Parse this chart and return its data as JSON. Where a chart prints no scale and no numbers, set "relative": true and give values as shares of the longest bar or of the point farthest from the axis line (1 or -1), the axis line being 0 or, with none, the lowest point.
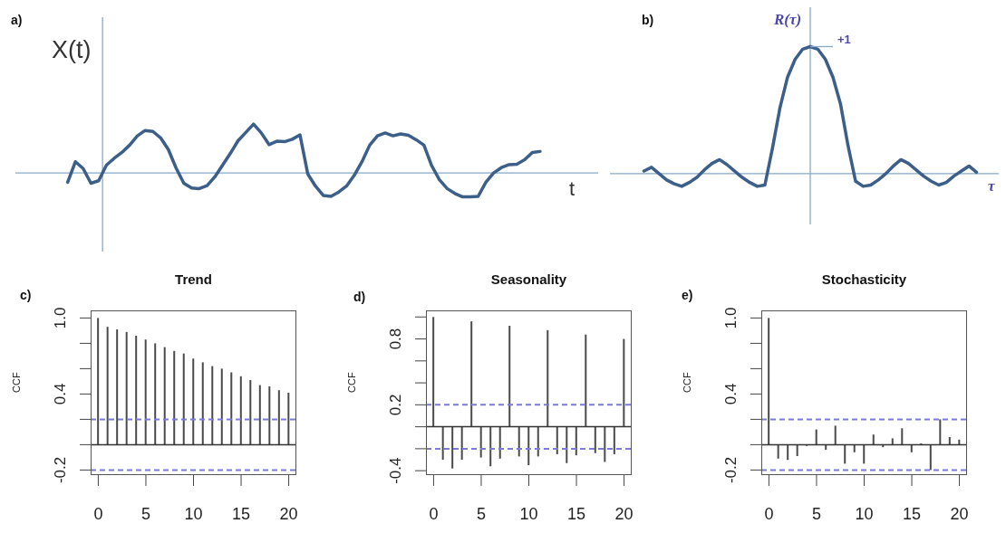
{
  "chart_data": [
    {
      "type": "line",
      "xlabel": "t",
      "ylabel": "X(t)",
      "annotations": [
        "a)"
      ],
      "ref_lines": [
        {
          "axis": "y",
          "value": 0,
          "color": "#86a9c9"
        }
      ],
      "relative": true,
      "color": "#3c5f8a",
      "marker": "none",
      "line_style": "solid",
      "grid": false,
      "legend": false,
      "tick_labels": false,
      "categories": [
        null,
        null,
        null,
        null,
        null,
        null,
        null,
        null,
        null,
        null,
        null,
        null,
        null,
        null,
        null,
        null,
        null,
        null,
        null,
        null,
        null,
        null,
        null,
        null,
        null,
        null,
        null,
        null,
        null,
        null,
        null,
        null,
        null,
        null,
        null,
        null,
        null,
        null,
        null,
        null,
        null,
        null,
        null,
        null,
        null,
        null,
        null,
        null,
        null,
        null,
        null,
        null,
        null,
        null,
        null,
        null,
        null,
        null,
        null,
        null,
        null,
        null
      ],
      "values": [
        -0.19,
        0.23,
        0.09,
        -0.21,
        -0.16,
        0.16,
        0.3,
        0.42,
        0.57,
        0.76,
        0.87,
        0.85,
        0.72,
        0.48,
        0.1,
        -0.21,
        -0.31,
        -0.32,
        -0.26,
        -0.08,
        0.16,
        0.4,
        0.66,
        0.83,
        1.0,
        0.82,
        0.58,
        0.65,
        0.64,
        0.69,
        0.78,
        -0.02,
        -0.27,
        -0.46,
        -0.48,
        -0.39,
        -0.27,
        -0.05,
        0.23,
        0.57,
        0.76,
        0.82,
        0.76,
        0.8,
        0.77,
        0.68,
        0.57,
        0.15,
        -0.14,
        -0.32,
        -0.42,
        -0.49,
        -0.49,
        -0.48,
        -0.19,
        0.0,
        0.11,
        0.17,
        0.18,
        0.27,
        0.42,
        0.44
      ]
    },
    {
      "type": "line",
      "xlabel": "τ",
      "ylabel": "R(τ)",
      "annotations": [
        "b)",
        "+1"
      ],
      "ref_lines": [
        {
          "axis": "y",
          "value": 0,
          "color": "#86a9c9"
        }
      ],
      "relative": true,
      "color": "#3c5f8a",
      "marker": "none",
      "line_style": "solid",
      "grid": false,
      "legend": false,
      "tick_labels": false,
      "categories": [
        null,
        null,
        null,
        null,
        null,
        null,
        null,
        null,
        null,
        null,
        null,
        null,
        null,
        null,
        null,
        null,
        null,
        null,
        null,
        null,
        null,
        null,
        null,
        null,
        null,
        null,
        null,
        null,
        null,
        null,
        null,
        null,
        null,
        null,
        null,
        null,
        null,
        null,
        null,
        null,
        null,
        null,
        null,
        null,
        null
      ],
      "values": [
        0.02,
        0.05,
        0.0,
        -0.05,
        -0.08,
        -0.1,
        -0.07,
        -0.03,
        0.03,
        0.08,
        0.11,
        0.07,
        0.02,
        -0.03,
        -0.07,
        -0.1,
        -0.09,
        0.2,
        0.52,
        0.76,
        0.9,
        0.98,
        1.0,
        0.98,
        0.9,
        0.76,
        0.55,
        0.22,
        -0.06,
        -0.1,
        -0.09,
        -0.05,
        0.0,
        0.06,
        0.11,
        0.08,
        0.03,
        -0.02,
        -0.06,
        -0.09,
        -0.07,
        -0.02,
        0.02,
        0.06,
        0.01
      ]
    },
    {
      "type": "bar",
      "title": "Trend",
      "ylabel": "CCF",
      "annotations": [
        "c)"
      ],
      "color": "#4a4a4a",
      "grid": false,
      "legend": false,
      "x": [
        0,
        1,
        2,
        3,
        4,
        5,
        6,
        7,
        8,
        9,
        10,
        11,
        12,
        13,
        14,
        15,
        16,
        17,
        18,
        19,
        20
      ],
      "values": [
        1.0,
        0.93,
        0.91,
        0.89,
        0.86,
        0.83,
        0.8,
        0.77,
        0.74,
        0.72,
        0.68,
        0.65,
        0.62,
        0.6,
        0.57,
        0.54,
        0.51,
        0.47,
        0.46,
        0.43,
        0.41
      ],
      "xlim": [
        -0.8,
        20.8
      ],
      "xticks": [
        0,
        5,
        10,
        15,
        20
      ],
      "ylim": [
        -0.24,
        1.06
      ],
      "yticks": [
        {
          "value": -0.2,
          "label": "-0.2"
        },
        {
          "value": 0,
          "label": null
        },
        {
          "value": 0.2,
          "label": null
        },
        {
          "value": 0.4,
          "label": "0.4"
        },
        {
          "value": 0.6,
          "label": null
        },
        {
          "value": 0.8,
          "label": null
        },
        {
          "value": 1,
          "label": "1.0"
        }
      ],
      "ref_lines": [
        {
          "axis": "y",
          "value": 0.2,
          "color": "#7b7bdc",
          "line_style": "dashed"
        },
        {
          "axis": "y",
          "value": -0.2,
          "color": "#7b7bdc",
          "line_style": "dashed"
        }
      ]
    },
    {
      "type": "bar",
      "title": "Seasonality",
      "ylabel": "CCF",
      "annotations": [
        "d)"
      ],
      "color": "#4a4a4a",
      "grid": false,
      "legend": false,
      "x": [
        0,
        1,
        2,
        3,
        4,
        5,
        6,
        7,
        8,
        9,
        10,
        11,
        12,
        13,
        14,
        15,
        16,
        17,
        18,
        19,
        20
      ],
      "values": [
        1.0,
        -0.3,
        -0.38,
        -0.3,
        0.96,
        -0.28,
        -0.36,
        -0.29,
        0.92,
        -0.27,
        -0.35,
        -0.27,
        0.88,
        -0.25,
        -0.33,
        -0.26,
        0.84,
        -0.24,
        -0.32,
        -0.25,
        0.8
      ],
      "xlim": [
        -0.8,
        20.8
      ],
      "xticks": [
        0,
        5,
        10,
        15,
        20
      ],
      "ylim": [
        -0.44,
        1.06
      ],
      "yticks": [
        {
          "value": -0.4,
          "label": "-0.4"
        },
        {
          "value": -0.2,
          "label": null
        },
        {
          "value": 0,
          "label": null
        },
        {
          "value": 0.2,
          "label": "0.2"
        },
        {
          "value": 0.4,
          "label": null
        },
        {
          "value": 0.6,
          "label": null
        },
        {
          "value": 0.8,
          "label": "0.8"
        },
        {
          "value": 1,
          "label": null
        }
      ],
      "ref_lines": [
        {
          "axis": "y",
          "value": 0.2,
          "color": "#7b7bdc",
          "line_style": "dashed"
        },
        {
          "axis": "y",
          "value": -0.2,
          "color": "#7b7bdc",
          "line_style": "dashed"
        }
      ]
    },
    {
      "type": "bar",
      "title": "Stochasticity",
      "ylabel": "CCF",
      "annotations": [
        "e)"
      ],
      "color": "#4a4a4a",
      "grid": false,
      "legend": false,
      "x": [
        0,
        1,
        2,
        3,
        4,
        5,
        6,
        7,
        8,
        9,
        10,
        11,
        12,
        13,
        14,
        15,
        16,
        17,
        18,
        19,
        20
      ],
      "values": [
        1.0,
        -0.11,
        -0.12,
        -0.09,
        -0.01,
        0.12,
        -0.04,
        0.15,
        -0.15,
        -0.06,
        -0.15,
        0.08,
        -0.02,
        0.05,
        0.13,
        -0.06,
        0.01,
        -0.2,
        0.2,
        0.06,
        0.04
      ],
      "xlim": [
        -0.8,
        20.8
      ],
      "xticks": [
        0,
        5,
        10,
        15,
        20
      ],
      "ylim": [
        -0.24,
        1.06
      ],
      "yticks": [
        {
          "value": -0.2,
          "label": "-0.2"
        },
        {
          "value": 0,
          "label": null
        },
        {
          "value": 0.2,
          "label": null
        },
        {
          "value": 0.4,
          "label": "0.4"
        },
        {
          "value": 0.6,
          "label": null
        },
        {
          "value": 0.8,
          "label": null
        },
        {
          "value": 1,
          "label": "1.0"
        }
      ],
      "ref_lines": [
        {
          "axis": "y",
          "value": 0.2,
          "color": "#7b7bdc",
          "line_style": "dashed"
        },
        {
          "axis": "y",
          "value": -0.2,
          "color": "#7b7bdc",
          "line_style": "dashed"
        }
      ]
    }
  ]
}
